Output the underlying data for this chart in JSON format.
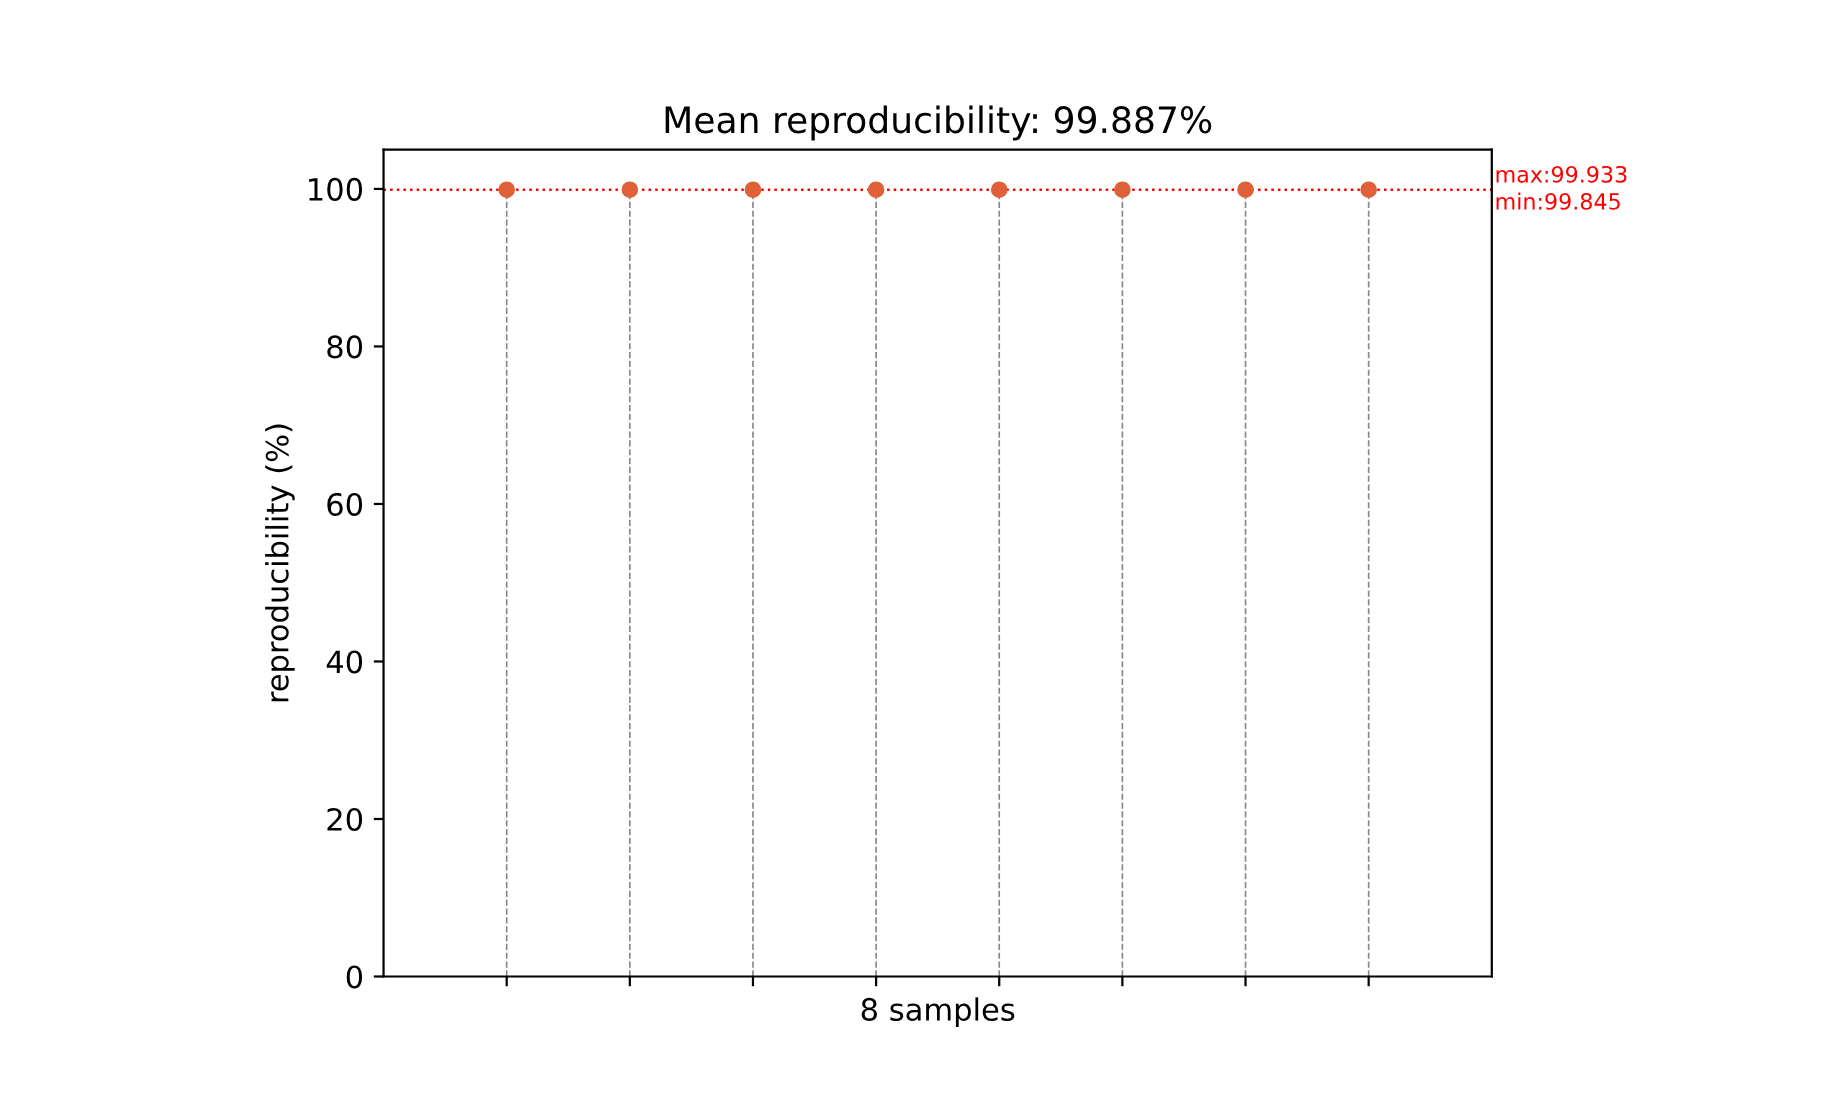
{
  "chart_data": {
    "type": "lollipop",
    "title": "Mean reproducibility: 99.887%",
    "xlabel": "8 samples",
    "ylabel": "reproducibility (%)",
    "categories": [
      null,
      null,
      null,
      null,
      null,
      null,
      null,
      null
    ],
    "series": [
      {
        "color": "#e0603a",
        "values": [
          99.9,
          99.9,
          99.9,
          99.9,
          99.9,
          99.9,
          99.9,
          99.9
        ]
      }
    ],
    "ylim": [
      0,
      105
    ],
    "yticks": [
      0,
      20,
      40,
      60,
      80,
      100
    ],
    "tick_labels": "y",
    "marker": "circle",
    "grid": false,
    "ref_lines": [
      {
        "axis": "y",
        "value": 99.887,
        "color": "#ff0000",
        "line_style": "dotted"
      }
    ],
    "annotations": [
      "max:99.933",
      "min:99.845"
    ]
  }
}
